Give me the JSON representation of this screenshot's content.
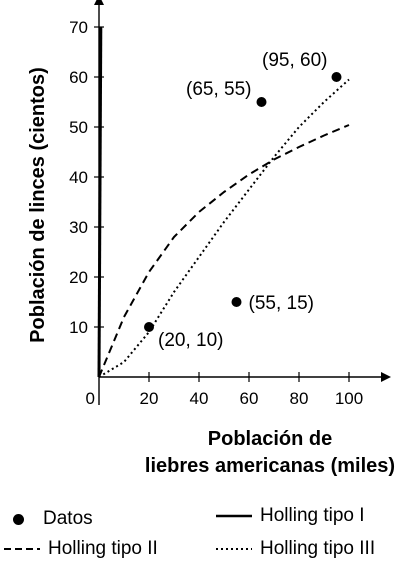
{
  "chart_data": {
    "type": "scatter",
    "xlabel_line1": "Población de",
    "xlabel_line2": "liebres americanas (miles)",
    "ylabel": "Población de linces (cientos)",
    "xlim": [
      0,
      110
    ],
    "ylim": [
      0,
      73
    ],
    "x_ticks": [
      0,
      20,
      40,
      60,
      80,
      100
    ],
    "y_ticks": [
      10,
      20,
      30,
      40,
      50,
      60,
      70
    ],
    "points": [
      {
        "x": 20,
        "y": 10,
        "label": "(20, 10)"
      },
      {
        "x": 55,
        "y": 15,
        "label": "(55, 15)"
      },
      {
        "x": 65,
        "y": 55,
        "label": "(65, 55)"
      },
      {
        "x": 95,
        "y": 60,
        "label": "(95, 60)"
      }
    ],
    "series": [
      {
        "name": "Datos",
        "style": "dot"
      },
      {
        "name": "Holling tipo I",
        "style": "solid",
        "x": [
          0,
          0.7
        ],
        "y": [
          0,
          70
        ]
      },
      {
        "name": "Holling tipo II",
        "style": "dashed",
        "x": [
          0,
          10,
          20,
          30,
          40,
          50,
          60,
          70,
          80,
          90,
          100
        ],
        "y": [
          0,
          12,
          21,
          28,
          33,
          37,
          40.5,
          43.5,
          46,
          48.3,
          50.4
        ]
      },
      {
        "name": "Holling tipo III",
        "style": "dotted",
        "x": [
          0,
          10,
          20,
          30,
          40,
          50,
          60,
          70,
          80,
          90,
          100
        ],
        "y": [
          0,
          3,
          9,
          17,
          24,
          31,
          37.5,
          44,
          50,
          55,
          59.5
        ]
      }
    ],
    "legend_position": "bottom",
    "grid": false,
    "colors": {
      "ink": "#000000",
      "background": "#ffffff"
    }
  }
}
